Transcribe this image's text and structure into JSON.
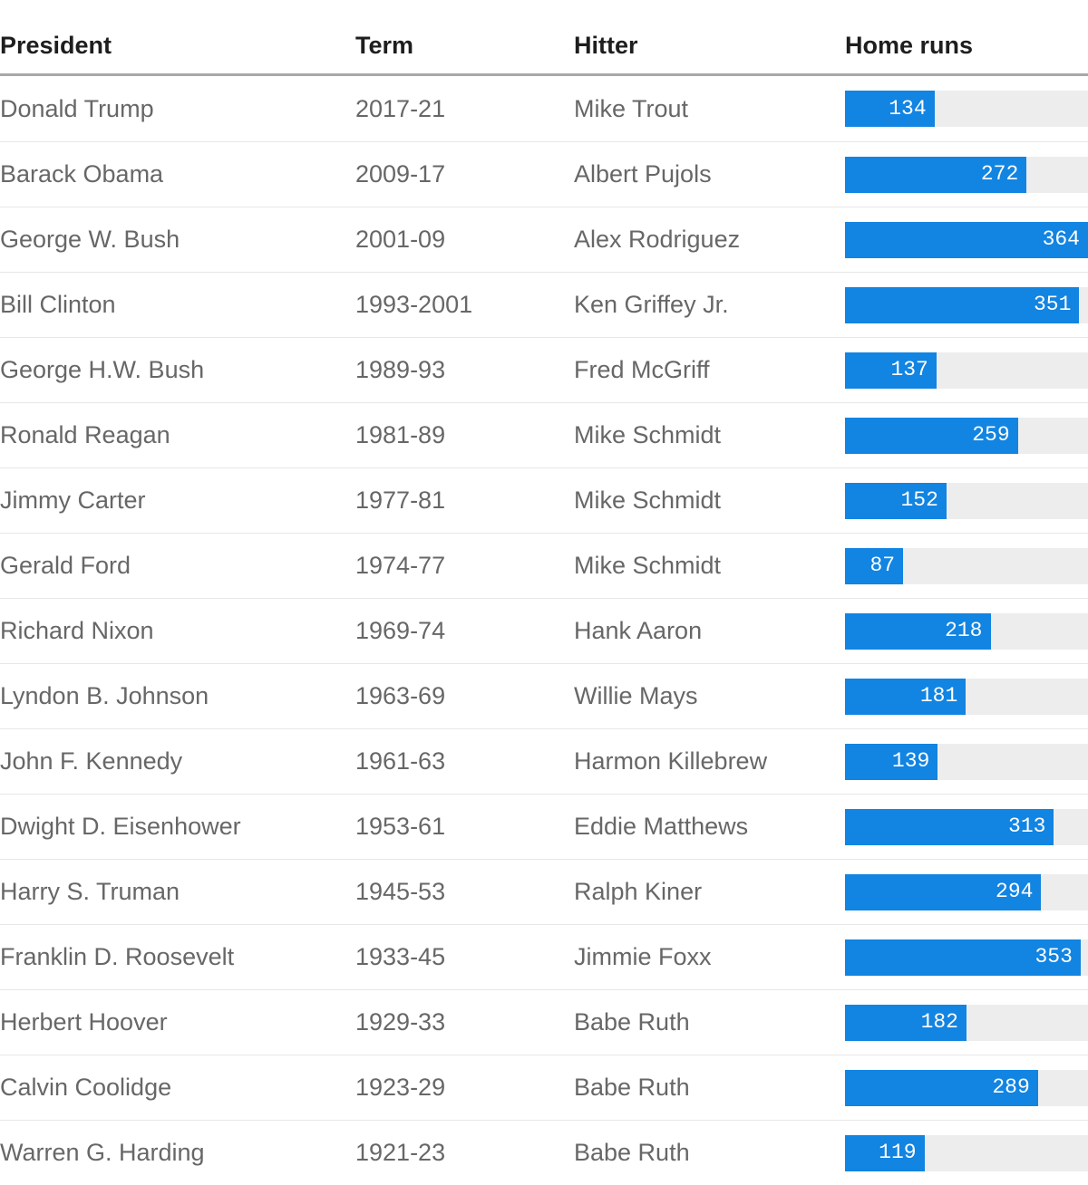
{
  "table": {
    "columns": [
      {
        "key": "president",
        "label": "President"
      },
      {
        "key": "term",
        "label": "Term"
      },
      {
        "key": "hitter",
        "label": "Hitter"
      },
      {
        "key": "home_runs",
        "label": "Home runs"
      }
    ],
    "rows": [
      {
        "president": "Donald Trump",
        "term": "2017-21",
        "hitter": "Mike Trout",
        "home_runs": 134
      },
      {
        "president": "Barack Obama",
        "term": "2009-17",
        "hitter": "Albert Pujols",
        "home_runs": 272
      },
      {
        "president": "George W. Bush",
        "term": "2001-09",
        "hitter": "Alex Rodriguez",
        "home_runs": 364
      },
      {
        "president": "Bill Clinton",
        "term": "1993-2001",
        "hitter": "Ken Griffey Jr.",
        "home_runs": 351
      },
      {
        "president": "George H.W. Bush",
        "term": "1989-93",
        "hitter": "Fred McGriff",
        "home_runs": 137
      },
      {
        "president": "Ronald Reagan",
        "term": "1981-89",
        "hitter": "Mike Schmidt",
        "home_runs": 259
      },
      {
        "president": "Jimmy Carter",
        "term": "1977-81",
        "hitter": "Mike Schmidt",
        "home_runs": 152
      },
      {
        "president": "Gerald Ford",
        "term": "1974-77",
        "hitter": "Mike Schmidt",
        "home_runs": 87
      },
      {
        "president": "Richard Nixon",
        "term": "1969-74",
        "hitter": "Hank Aaron",
        "home_runs": 218
      },
      {
        "president": "Lyndon B. Johnson",
        "term": "1963-69",
        "hitter": "Willie Mays",
        "home_runs": 181
      },
      {
        "president": "John F. Kennedy",
        "term": "1961-63",
        "hitter": "Harmon Killebrew",
        "home_runs": 139
      },
      {
        "president": "Dwight D. Eisenhower",
        "term": "1953-61",
        "hitter": "Eddie Matthews",
        "home_runs": 313
      },
      {
        "president": "Harry S. Truman",
        "term": "1945-53",
        "hitter": "Ralph Kiner",
        "home_runs": 294
      },
      {
        "president": "Franklin D. Roosevelt",
        "term": "1933-45",
        "hitter": "Jimmie Foxx",
        "home_runs": 353
      },
      {
        "president": "Herbert Hoover",
        "term": "1929-33",
        "hitter": "Babe Ruth",
        "home_runs": 182
      },
      {
        "president": "Calvin Coolidge",
        "term": "1923-29",
        "hitter": "Babe Ruth",
        "home_runs": 289
      },
      {
        "president": "Warren G. Harding",
        "term": "1921-23",
        "hitter": "Babe Ruth",
        "home_runs": 119
      }
    ]
  },
  "chart_data": {
    "type": "bar",
    "orientation": "horizontal",
    "title": "",
    "xlabel": "Home runs",
    "ylabel": "President",
    "categories": [
      "Donald Trump",
      "Barack Obama",
      "George W. Bush",
      "Bill Clinton",
      "George H.W. Bush",
      "Ronald Reagan",
      "Jimmy Carter",
      "Gerald Ford",
      "Richard Nixon",
      "Lyndon B. Johnson",
      "John F. Kennedy",
      "Dwight D. Eisenhower",
      "Harry S. Truman",
      "Franklin D. Roosevelt",
      "Herbert Hoover",
      "Calvin Coolidge",
      "Warren G. Harding"
    ],
    "category_terms": [
      "2017-21",
      "2009-17",
      "2001-09",
      "1993-2001",
      "1989-93",
      "1981-89",
      "1977-81",
      "1974-77",
      "1969-74",
      "1963-69",
      "1961-63",
      "1953-61",
      "1945-53",
      "1933-45",
      "1929-33",
      "1923-29",
      "1921-23"
    ],
    "category_hitters": [
      "Mike Trout",
      "Albert Pujols",
      "Alex Rodriguez",
      "Ken Griffey Jr.",
      "Fred McGriff",
      "Mike Schmidt",
      "Mike Schmidt",
      "Mike Schmidt",
      "Hank Aaron",
      "Willie Mays",
      "Harmon Killebrew",
      "Eddie Matthews",
      "Ralph Kiner",
      "Jimmie Foxx",
      "Babe Ruth",
      "Babe Ruth",
      "Babe Ruth"
    ],
    "series": [
      {
        "name": "Home runs",
        "values": [
          134,
          272,
          364,
          351,
          137,
          259,
          152,
          87,
          218,
          181,
          139,
          313,
          294,
          353,
          182,
          289,
          119
        ]
      }
    ],
    "xlim": [
      0,
      364
    ],
    "grid": false,
    "legend_position": "none",
    "value_labels": "inside-end"
  },
  "colors": {
    "bar_fill": "#1284e2",
    "bar_track": "#ededed",
    "header_text": "#1e1e1e",
    "body_text": "#676767",
    "header_divider": "#a8a8a8",
    "row_separator": "#e7e7e7",
    "value_text": "#ffffff"
  }
}
